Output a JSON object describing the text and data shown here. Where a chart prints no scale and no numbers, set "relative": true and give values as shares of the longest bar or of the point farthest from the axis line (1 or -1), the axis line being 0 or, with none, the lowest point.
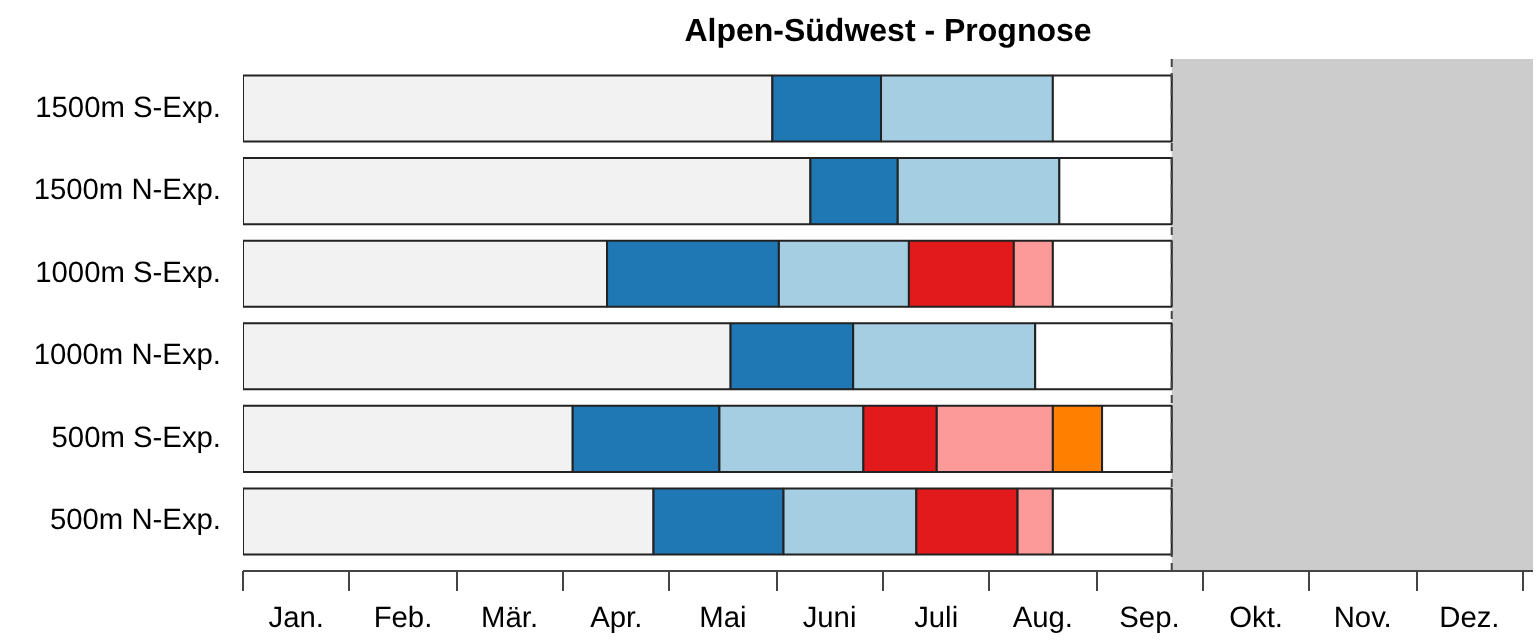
{
  "chart_data": {
    "type": "bar",
    "orientation": "horizontal",
    "stacked": true,
    "relative": true,
    "title": "Alpen-Südwest - Prognose",
    "categories": [
      "1500m S-Exp.",
      "1500m N-Exp.",
      "1000m S-Exp.",
      "1000m N-Exp.",
      "500m S-Exp.",
      "500m N-Exp."
    ],
    "series": [
      {
        "color": "#f2f2f2",
        "values": [
          0.57,
          0.611,
          0.392,
          0.525,
          0.355,
          0.442
        ]
      },
      {
        "color": "#1f78b4",
        "values": [
          0.117,
          0.094,
          0.185,
          0.132,
          0.158,
          0.14
        ]
      },
      {
        "color": "#a6cee3",
        "values": [
          0.185,
          0.174,
          0.14,
          0.196,
          0.155,
          0.143
        ]
      },
      {
        "color": "#e31a1c",
        "values": [
          null,
          null,
          0.113,
          null,
          0.079,
          0.109
        ]
      },
      {
        "color": "#fb9a99",
        "values": [
          null,
          null,
          0.042,
          null,
          0.125,
          0.038
        ]
      },
      {
        "color": "#ff7f00",
        "values": [
          null,
          null,
          null,
          null,
          0.053,
          null
        ]
      },
      {
        "color": "#ffffff",
        "values": [
          0.128,
          0.121,
          0.128,
          0.147,
          0.075,
          0.128
        ]
      }
    ],
    "annotations": [
      "Jan.",
      "Feb.",
      "Mär.",
      "Apr.",
      "Mai",
      "Juni",
      "Juli",
      "Aug.",
      "Sep.",
      "Okt.",
      "Nov.",
      "Dez."
    ],
    "bands": [
      {
        "axis": "x",
        "from": 1,
        "to": 1.389,
        "color": "#cccccc"
      }
    ],
    "ref_lines": [
      {
        "axis": "x",
        "value": 1,
        "line_style": "dashed"
      }
    ],
    "grid": false
  }
}
